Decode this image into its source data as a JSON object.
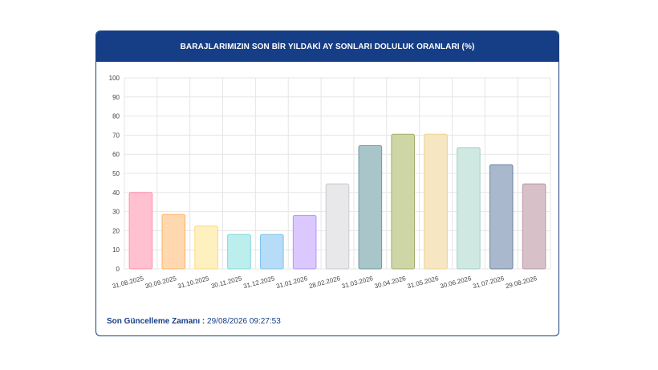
{
  "card": {
    "title": "BARAJLARIMIZIN SON BİR YILDAKİ AY SONLARI DOLULUK ORANLARI (%)"
  },
  "footer": {
    "label": "Son Güncelleme Zamanı :",
    "value": "29/08/2026 09:27:53"
  },
  "colors": {
    "header_bg": "#163e86",
    "grid": "#e6e6e6"
  },
  "chart_data": {
    "type": "bar",
    "title": "BARAJLARIMIZIN SON BİR YILDAKİ AY SONLARI DOLULUK ORANLARI (%)",
    "xlabel": "",
    "ylabel": "",
    "ylim": [
      0,
      100
    ],
    "yticks": [
      0,
      10,
      20,
      30,
      40,
      50,
      60,
      70,
      80,
      90,
      100
    ],
    "grid": true,
    "categories": [
      "31.08.2025",
      "30.09.2025",
      "31.10.2025",
      "30.11.2025",
      "31.12.2025",
      "31.01.2026",
      "28.02.2026",
      "31.03.2026",
      "30.04.2026",
      "31.05.2026",
      "30.06.2026",
      "31.07.2026",
      "29.08.2026"
    ],
    "values": [
      40,
      28.5,
      22.5,
      18,
      18,
      28,
      44.5,
      64.5,
      70.5,
      70.5,
      63.5,
      54.5,
      44.5
    ],
    "bar_colors": [
      "#ffc1d0",
      "#ffd8b0",
      "#fff0c0",
      "#bdeeee",
      "#b6dcf7",
      "#dac8ff",
      "#e8e8ea",
      "#a8c5c9",
      "#cfd6a5",
      "#f6e7c2",
      "#cfe9e2",
      "#a9b8cc",
      "#d8c0c8"
    ],
    "bar_stroke_colors": [
      "#ff8fab",
      "#ffb366",
      "#ffd97a",
      "#7fd9d9",
      "#7cc3f0",
      "#b394ff",
      "#c9c9cf",
      "#6f9aa0",
      "#a4ae6b",
      "#ecd091",
      "#9fd1c4",
      "#6d83a3",
      "#b69aa5"
    ]
  }
}
